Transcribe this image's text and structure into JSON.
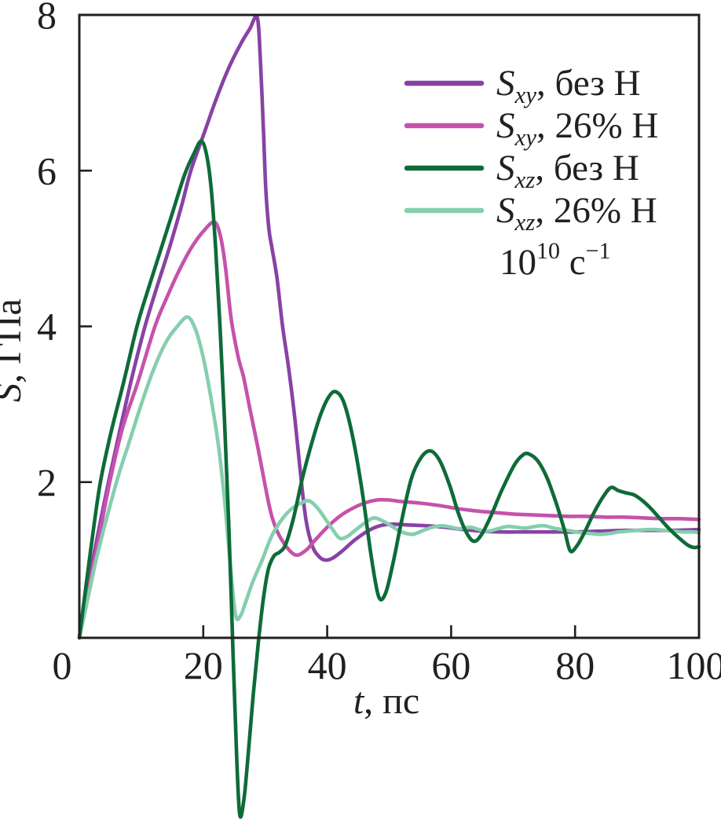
{
  "chart_data": {
    "type": "line",
    "title": "",
    "xlabel": {
      "variable": "t",
      "unit": ", пс"
    },
    "ylabel": {
      "variable": "S",
      "unit": ", ГПа"
    },
    "xlim": [
      0,
      100
    ],
    "ylim": [
      0,
      8
    ],
    "xticks": [
      0,
      20,
      40,
      60,
      80,
      100
    ],
    "yticks": [
      0,
      2,
      4,
      6,
      8
    ],
    "grid": false,
    "legend_position": "top-right",
    "annotation": {
      "plain": "10^10 с^-1",
      "base": "10",
      "base_sup": "10",
      "unit": " с",
      "unit_sup": "−1"
    },
    "axis_color": "#231f20",
    "series": [
      {
        "name": "Sxy, без Н",
        "label": {
          "base": "S",
          "sub": "xy",
          "rest": ", без Н"
        },
        "color": "#8842a4",
        "points": [
          [
            0,
            0
          ],
          [
            1,
            0.45
          ],
          [
            2,
            0.92
          ],
          [
            3.3,
            1.45
          ],
          [
            4.7,
            2.0
          ],
          [
            6.5,
            2.65
          ],
          [
            8.5,
            3.35
          ],
          [
            10.6,
            4.0
          ],
          [
            12.5,
            4.5
          ],
          [
            14.5,
            5.0
          ],
          [
            16.5,
            5.55
          ],
          [
            18,
            6.0
          ],
          [
            20,
            6.45
          ],
          [
            22,
            6.9
          ],
          [
            24,
            7.3
          ],
          [
            26,
            7.62
          ],
          [
            27.5,
            7.82
          ],
          [
            28.7,
            7.97
          ],
          [
            29.2,
            7.45
          ],
          [
            29.7,
            6.55
          ],
          [
            30.1,
            5.75
          ],
          [
            30.6,
            5.25
          ],
          [
            31.1,
            5.0
          ],
          [
            31.9,
            4.62
          ],
          [
            32.8,
            4.0
          ],
          [
            33.8,
            3.45
          ],
          [
            34.8,
            2.8
          ],
          [
            35.7,
            2.1
          ],
          [
            36.6,
            1.5
          ],
          [
            37.6,
            1.18
          ],
          [
            38.6,
            1.05
          ],
          [
            39.6,
            1.0
          ],
          [
            40.8,
            1.02
          ],
          [
            42.5,
            1.12
          ],
          [
            44.5,
            1.26
          ],
          [
            46.5,
            1.37
          ],
          [
            48.5,
            1.44
          ],
          [
            50.5,
            1.46
          ],
          [
            53,
            1.45
          ],
          [
            56,
            1.44
          ],
          [
            59,
            1.42
          ],
          [
            62,
            1.39
          ],
          [
            65,
            1.37
          ],
          [
            68,
            1.36
          ],
          [
            72,
            1.36
          ],
          [
            76,
            1.36
          ],
          [
            80,
            1.36
          ],
          [
            84,
            1.37
          ],
          [
            88,
            1.38
          ],
          [
            92,
            1.38
          ],
          [
            96,
            1.38
          ],
          [
            100,
            1.39
          ]
        ]
      },
      {
        "name": "Sxy, 26% Н",
        "label": {
          "base": "S",
          "sub": "xy",
          "rest": ", 26% Н"
        },
        "color": "#c552ab",
        "points": [
          [
            0,
            0
          ],
          [
            1,
            0.42
          ],
          [
            2,
            0.83
          ],
          [
            3.2,
            1.3
          ],
          [
            4.9,
            2.0
          ],
          [
            7,
            2.7
          ],
          [
            9.5,
            3.3
          ],
          [
            12.2,
            4.0
          ],
          [
            14,
            4.35
          ],
          [
            16,
            4.7
          ],
          [
            18,
            5.0
          ],
          [
            20,
            5.22
          ],
          [
            21.8,
            5.34
          ],
          [
            22.8,
            5.15
          ],
          [
            23.6,
            4.75
          ],
          [
            24.5,
            4.1
          ],
          [
            25.6,
            3.62
          ],
          [
            26.5,
            3.35
          ],
          [
            27.5,
            2.95
          ],
          [
            28.8,
            2.45
          ],
          [
            30,
            1.95
          ],
          [
            31.1,
            1.55
          ],
          [
            32.5,
            1.28
          ],
          [
            34.7,
            1.07
          ],
          [
            36.5,
            1.12
          ],
          [
            38,
            1.25
          ],
          [
            40,
            1.42
          ],
          [
            42,
            1.56
          ],
          [
            44,
            1.66
          ],
          [
            46,
            1.73
          ],
          [
            48,
            1.77
          ],
          [
            50,
            1.77
          ],
          [
            52,
            1.75
          ],
          [
            55,
            1.73
          ],
          [
            58,
            1.7
          ],
          [
            61,
            1.66
          ],
          [
            64,
            1.63
          ],
          [
            67,
            1.61
          ],
          [
            70,
            1.59
          ],
          [
            73,
            1.58
          ],
          [
            76,
            1.57
          ],
          [
            79,
            1.56
          ],
          [
            82,
            1.56
          ],
          [
            85,
            1.55
          ],
          [
            88,
            1.55
          ],
          [
            91,
            1.54
          ],
          [
            94,
            1.53
          ],
          [
            97,
            1.53
          ],
          [
            100,
            1.52
          ]
        ]
      },
      {
        "name": "Sxz, без Н",
        "label": {
          "base": "S",
          "sub": "xz",
          "rest": ", без Н"
        },
        "color": "#0e6b38",
        "points": [
          [
            0,
            0
          ],
          [
            1,
            0.62
          ],
          [
            2.2,
            1.35
          ],
          [
            3.4,
            2.0
          ],
          [
            5,
            2.6
          ],
          [
            7.2,
            3.3
          ],
          [
            9.3,
            4.0
          ],
          [
            11,
            4.45
          ],
          [
            13,
            4.95
          ],
          [
            15,
            5.45
          ],
          [
            17,
            5.95
          ],
          [
            18.5,
            6.22
          ],
          [
            19.7,
            6.38
          ],
          [
            20.6,
            6.18
          ],
          [
            21.3,
            5.75
          ],
          [
            22,
            5.0
          ],
          [
            22.7,
            4.0
          ],
          [
            23.4,
            2.85
          ],
          [
            24.1,
            1.5
          ],
          [
            24.8,
            -0.2
          ],
          [
            25.4,
            -1.55
          ],
          [
            25.9,
            -2.28
          ],
          [
            26.6,
            -2.05
          ],
          [
            27.3,
            -1.45
          ],
          [
            28.1,
            -0.7
          ],
          [
            28.9,
            -0.05
          ],
          [
            29.7,
            0.5
          ],
          [
            30.5,
            0.88
          ],
          [
            31.4,
            1.05
          ],
          [
            32.3,
            1.1
          ],
          [
            33.3,
            1.2
          ],
          [
            34.6,
            1.55
          ],
          [
            36,
            2.05
          ],
          [
            37.5,
            2.5
          ],
          [
            39,
            2.88
          ],
          [
            40.3,
            3.1
          ],
          [
            41.4,
            3.16
          ],
          [
            42.7,
            3.02
          ],
          [
            44.2,
            2.55
          ],
          [
            45.7,
            1.85
          ],
          [
            47.1,
            1.05
          ],
          [
            48.3,
            0.53
          ],
          [
            49.4,
            0.57
          ],
          [
            50.6,
            0.95
          ],
          [
            52,
            1.5
          ],
          [
            53.6,
            2.05
          ],
          [
            55.2,
            2.32
          ],
          [
            56.7,
            2.4
          ],
          [
            58.2,
            2.27
          ],
          [
            59.8,
            1.95
          ],
          [
            61.3,
            1.57
          ],
          [
            62.7,
            1.32
          ],
          [
            63.8,
            1.24
          ],
          [
            65,
            1.34
          ],
          [
            66.5,
            1.58
          ],
          [
            68.2,
            1.9
          ],
          [
            70.2,
            2.22
          ],
          [
            71.6,
            2.35
          ],
          [
            72.6,
            2.36
          ],
          [
            74,
            2.27
          ],
          [
            75.5,
            2.05
          ],
          [
            77,
            1.72
          ],
          [
            78.3,
            1.38
          ],
          [
            79.2,
            1.12
          ],
          [
            80.2,
            1.17
          ],
          [
            81.5,
            1.35
          ],
          [
            83,
            1.6
          ],
          [
            84.6,
            1.82
          ],
          [
            85.8,
            1.93
          ],
          [
            87,
            1.89
          ],
          [
            88.3,
            1.86
          ],
          [
            89.4,
            1.84
          ],
          [
            90.6,
            1.78
          ],
          [
            92,
            1.68
          ],
          [
            93.6,
            1.54
          ],
          [
            95.2,
            1.4
          ],
          [
            96.8,
            1.28
          ],
          [
            98.2,
            1.19
          ],
          [
            99.2,
            1.16
          ],
          [
            100,
            1.17
          ]
        ]
      },
      {
        "name": "Sxz, 26% Н",
        "label": {
          "base": "S",
          "sub": "xz",
          "rest": ", 26% Н"
        },
        "color": "#85ceae",
        "points": [
          [
            0,
            0
          ],
          [
            1.5,
            0.55
          ],
          [
            3,
            1.1
          ],
          [
            6,
            2.0
          ],
          [
            8,
            2.5
          ],
          [
            10,
            3.0
          ],
          [
            12,
            3.45
          ],
          [
            14,
            3.8
          ],
          [
            15.8,
            4.0
          ],
          [
            17.5,
            4.12
          ],
          [
            18.8,
            3.95
          ],
          [
            20,
            3.6
          ],
          [
            21.2,
            3.1
          ],
          [
            22.4,
            2.5
          ],
          [
            23.4,
            1.8
          ],
          [
            24.3,
            1.0
          ],
          [
            25.2,
            0.3
          ],
          [
            26,
            0.28
          ],
          [
            26.8,
            0.45
          ],
          [
            28,
            0.72
          ],
          [
            29.5,
            1.0
          ],
          [
            31,
            1.3
          ],
          [
            32.5,
            1.5
          ],
          [
            34,
            1.64
          ],
          [
            35.5,
            1.72
          ],
          [
            37,
            1.76
          ],
          [
            38.3,
            1.68
          ],
          [
            39.5,
            1.55
          ],
          [
            40.8,
            1.4
          ],
          [
            42,
            1.28
          ],
          [
            43.2,
            1.3
          ],
          [
            44.5,
            1.38
          ],
          [
            46,
            1.47
          ],
          [
            47.5,
            1.54
          ],
          [
            49,
            1.5
          ],
          [
            50.5,
            1.43
          ],
          [
            52,
            1.36
          ],
          [
            53.8,
            1.33
          ],
          [
            55.5,
            1.38
          ],
          [
            57,
            1.42
          ],
          [
            58.5,
            1.44
          ],
          [
            60,
            1.42
          ],
          [
            61.5,
            1.4
          ],
          [
            63,
            1.42
          ],
          [
            64.5,
            1.39
          ],
          [
            66,
            1.37
          ],
          [
            67.5,
            1.4
          ],
          [
            69,
            1.43
          ],
          [
            70.5,
            1.42
          ],
          [
            72,
            1.41
          ],
          [
            73.5,
            1.43
          ],
          [
            75,
            1.44
          ],
          [
            76.5,
            1.41
          ],
          [
            78,
            1.39
          ],
          [
            79.5,
            1.37
          ],
          [
            81,
            1.35
          ],
          [
            82.5,
            1.34
          ],
          [
            84,
            1.33
          ],
          [
            85.5,
            1.34
          ],
          [
            87,
            1.36
          ],
          [
            88.5,
            1.37
          ],
          [
            90,
            1.38
          ],
          [
            91.5,
            1.39
          ],
          [
            93,
            1.39
          ],
          [
            94.5,
            1.38
          ],
          [
            96,
            1.37
          ],
          [
            97.5,
            1.36
          ],
          [
            99,
            1.36
          ],
          [
            100,
            1.35
          ]
        ]
      }
    ]
  }
}
